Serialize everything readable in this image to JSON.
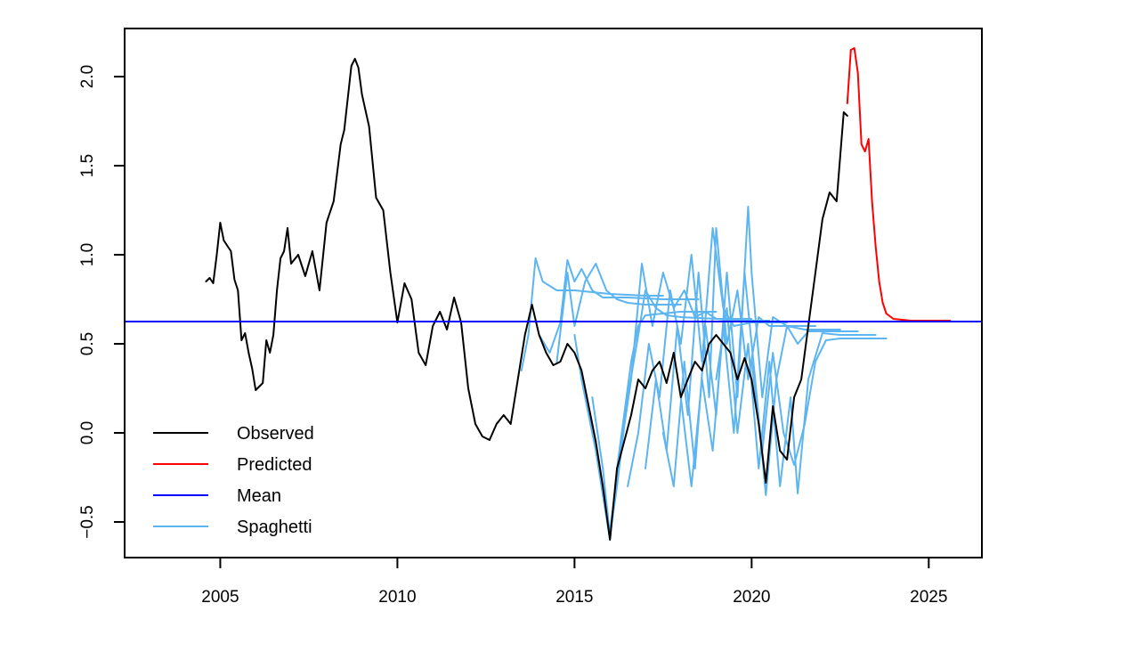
{
  "chart_data": {
    "type": "line",
    "title": "",
    "xlabel": "",
    "ylabel": "",
    "xlim": [
      2002.3,
      2026.5
    ],
    "ylim": [
      -0.7,
      2.27
    ],
    "x_ticks": [
      2005,
      2010,
      2015,
      2020,
      2025
    ],
    "x_tick_labels": [
      "2005",
      "2010",
      "2015",
      "2020",
      "2025"
    ],
    "y_ticks": [
      -0.5,
      0.0,
      0.5,
      1.0,
      1.5,
      2.0
    ],
    "y_tick_labels": [
      "−0.5",
      "0.0",
      "0.5",
      "1.0",
      "1.5",
      "2.0"
    ],
    "grid": false,
    "legend_position": "bottom-left",
    "colors": {
      "observed": "#000000",
      "predicted": "#ff0000",
      "mean": "#0000ff",
      "spaghetti": "#5cb4f0"
    },
    "legend": [
      {
        "name": "Observed",
        "color": "#000000"
      },
      {
        "name": "Predicted",
        "color": "#ff0000"
      },
      {
        "name": "Mean",
        "color": "#0000ff"
      },
      {
        "name": "Spaghetti",
        "color": "#5cb4f0"
      }
    ],
    "mean_value": 0.625,
    "series": [
      {
        "key": "observed",
        "x": [
          2004.6,
          2004.7,
          2004.8,
          2004.9,
          2005.0,
          2005.1,
          2005.2,
          2005.3,
          2005.4,
          2005.5,
          2005.6,
          2005.7,
          2005.8,
          2005.9,
          2006.0,
          2006.1,
          2006.2,
          2006.3,
          2006.4,
          2006.5,
          2006.6,
          2006.7,
          2006.8,
          2006.9,
          2007.0,
          2007.2,
          2007.4,
          2007.6,
          2007.8,
          2008.0,
          2008.2,
          2008.4,
          2008.5,
          2008.6,
          2008.7,
          2008.8,
          2008.9,
          2009.0,
          2009.2,
          2009.4,
          2009.6,
          2009.8,
          2010.0,
          2010.2,
          2010.4,
          2010.6,
          2010.8,
          2011.0,
          2011.2,
          2011.4,
          2011.6,
          2011.8,
          2012.0,
          2012.2,
          2012.4,
          2012.6,
          2012.8,
          2013.0,
          2013.2,
          2013.4,
          2013.6,
          2013.8,
          2014.0,
          2014.2,
          2014.4,
          2014.6,
          2014.8,
          2015.0,
          2015.2,
          2015.4,
          2015.6,
          2015.8,
          2016.0,
          2016.1,
          2016.2,
          2016.4,
          2016.6,
          2016.8,
          2017.0,
          2017.2,
          2017.4,
          2017.6,
          2017.8,
          2018.0,
          2018.2,
          2018.4,
          2018.6,
          2018.8,
          2019.0,
          2019.2,
          2019.4,
          2019.6,
          2019.8,
          2020.0,
          2020.2,
          2020.4,
          2020.6,
          2020.8,
          2021.0,
          2021.2,
          2021.4,
          2021.6,
          2021.8,
          2022.0,
          2022.2,
          2022.4,
          2022.6,
          2022.7
        ],
        "y": [
          0.85,
          0.87,
          0.84,
          1.0,
          1.18,
          1.08,
          1.05,
          1.02,
          0.86,
          0.8,
          0.52,
          0.56,
          0.45,
          0.36,
          0.24,
          0.26,
          0.28,
          0.52,
          0.45,
          0.55,
          0.8,
          0.98,
          1.02,
          1.15,
          0.95,
          1.0,
          0.88,
          1.02,
          0.8,
          1.18,
          1.3,
          1.62,
          1.7,
          1.88,
          2.06,
          2.1,
          2.05,
          1.9,
          1.72,
          1.32,
          1.25,
          0.9,
          0.62,
          0.84,
          0.75,
          0.45,
          0.38,
          0.6,
          0.68,
          0.58,
          0.76,
          0.62,
          0.25,
          0.05,
          -0.02,
          -0.04,
          0.05,
          0.1,
          0.05,
          0.3,
          0.55,
          0.72,
          0.55,
          0.45,
          0.38,
          0.4,
          0.5,
          0.45,
          0.35,
          0.15,
          -0.05,
          -0.3,
          -0.6,
          -0.4,
          -0.2,
          -0.05,
          0.1,
          0.3,
          0.25,
          0.35,
          0.4,
          0.28,
          0.45,
          0.2,
          0.3,
          0.4,
          0.35,
          0.5,
          0.55,
          0.5,
          0.45,
          0.3,
          0.42,
          0.3,
          0.05,
          -0.28,
          0.15,
          -0.1,
          -0.15,
          0.2,
          0.3,
          0.6,
          0.9,
          1.2,
          1.35,
          1.3,
          1.8,
          1.78
        ],
        "color": "#000000",
        "width": 2
      },
      {
        "key": "predicted",
        "x": [
          2022.7,
          2022.8,
          2022.9,
          2023.0,
          2023.1,
          2023.2,
          2023.3,
          2023.4,
          2023.5,
          2023.6,
          2023.7,
          2023.8,
          2024.0,
          2024.5,
          2025.0,
          2025.6
        ],
        "y": [
          1.85,
          2.15,
          2.16,
          2.02,
          1.62,
          1.58,
          1.65,
          1.3,
          1.05,
          0.85,
          0.73,
          0.67,
          0.64,
          0.63,
          0.63,
          0.63
        ],
        "color": "#ff0000",
        "width": 2
      },
      {
        "key": "spaghetti",
        "x": [
          2013.5,
          2013.7,
          2013.9,
          2014.1,
          2014.5,
          2015.0,
          2015.5,
          2016.0,
          2017.0,
          2017.5
        ],
        "y": [
          0.35,
          0.55,
          0.98,
          0.85,
          0.8,
          0.8,
          0.79,
          0.78,
          0.77,
          0.77
        ],
        "color": "#5cb4f0",
        "width": 2
      },
      {
        "key": "spaghetti",
        "x": [
          2014.0,
          2014.3,
          2014.6,
          2014.8,
          2015.0,
          2015.2,
          2015.5,
          2015.8,
          2016.5,
          2017.5,
          2018.5
        ],
        "y": [
          0.55,
          0.45,
          0.62,
          0.97,
          0.85,
          0.92,
          0.8,
          0.76,
          0.76,
          0.75,
          0.75
        ],
        "color": "#5cb4f0",
        "width": 2
      },
      {
        "key": "spaghetti",
        "x": [
          2014.5,
          2014.8,
          2015.0,
          2015.3,
          2015.6,
          2015.9,
          2016.2,
          2016.5,
          2017.0,
          2018.0
        ],
        "y": [
          0.4,
          0.9,
          0.6,
          0.85,
          0.95,
          0.8,
          0.75,
          0.73,
          0.72,
          0.72
        ],
        "color": "#5cb4f0",
        "width": 2
      },
      {
        "key": "spaghetti",
        "x": [
          2015.0,
          2015.2,
          2015.4,
          2015.6,
          2015.8,
          2016.0,
          2016.2,
          2016.4,
          2016.6,
          2016.8,
          2017.0,
          2018.0,
          2019.0
        ],
        "y": [
          0.55,
          0.3,
          0.1,
          -0.1,
          -0.35,
          -0.6,
          -0.2,
          0.1,
          0.4,
          0.6,
          0.66,
          0.68,
          0.68
        ],
        "color": "#5cb4f0",
        "width": 2
      },
      {
        "key": "spaghetti",
        "x": [
          2015.5,
          2015.8,
          2016.0,
          2016.2,
          2016.5,
          2016.8,
          2017.0,
          2017.3,
          2017.6,
          2018.0,
          2019.0,
          2020.0
        ],
        "y": [
          0.2,
          -0.2,
          -0.58,
          -0.3,
          0.2,
          0.55,
          0.8,
          0.7,
          0.66,
          0.65,
          0.64,
          0.64
        ],
        "color": "#5cb4f0",
        "width": 2
      },
      {
        "key": "spaghetti",
        "x": [
          2016.0,
          2016.3,
          2016.6,
          2016.9,
          2017.2,
          2017.5,
          2017.8,
          2018.1,
          2018.4,
          2018.7,
          2019.0,
          2019.5,
          2020.5
        ],
        "y": [
          -0.55,
          -0.1,
          0.3,
          0.95,
          0.6,
          0.9,
          0.7,
          0.8,
          0.65,
          0.68,
          0.64,
          0.63,
          0.63
        ],
        "color": "#5cb4f0",
        "width": 2
      },
      {
        "key": "spaghetti",
        "x": [
          2016.5,
          2016.8,
          2017.1,
          2017.4,
          2017.7,
          2018.0,
          2018.3,
          2018.6,
          2018.9,
          2019.2,
          2019.5,
          2020.0,
          2021.0
        ],
        "y": [
          -0.3,
          0.0,
          0.5,
          0.2,
          0.8,
          0.5,
          1.0,
          0.4,
          1.15,
          0.7,
          0.6,
          0.62,
          0.62
        ],
        "color": "#5cb4f0",
        "width": 2
      },
      {
        "key": "spaghetti",
        "x": [
          2017.0,
          2017.3,
          2017.6,
          2017.9,
          2018.2,
          2018.5,
          2018.8,
          2019.0,
          2019.3,
          2019.6,
          2019.9,
          2020.2,
          2020.5,
          2021.0,
          2021.8
        ],
        "y": [
          -0.2,
          0.3,
          -0.1,
          0.6,
          0.1,
          0.9,
          0.2,
          1.15,
          0.5,
          0.8,
          0.3,
          0.65,
          0.6,
          0.6,
          0.6
        ],
        "color": "#5cb4f0",
        "width": 2
      },
      {
        "key": "spaghetti",
        "x": [
          2017.5,
          2017.8,
          2018.1,
          2018.4,
          2018.7,
          2019.0,
          2019.3,
          2019.6,
          2019.9,
          2020.0,
          2020.3,
          2020.6,
          2021.0,
          2021.5,
          2022.5
        ],
        "y": [
          0.0,
          -0.3,
          0.4,
          -0.2,
          0.6,
          0.1,
          0.9,
          0.2,
          1.27,
          0.9,
          0.2,
          0.65,
          0.6,
          0.58,
          0.58
        ],
        "color": "#5cb4f0",
        "width": 2
      },
      {
        "key": "spaghetti",
        "x": [
          2018.0,
          2018.3,
          2018.6,
          2018.9,
          2019.2,
          2019.5,
          2019.8,
          2020.1,
          2020.4,
          2020.7,
          2021.0,
          2021.3,
          2021.6,
          2022.0,
          2023.0
        ],
        "y": [
          0.2,
          -0.3,
          0.3,
          -0.1,
          0.6,
          0.0,
          0.9,
          0.3,
          -0.35,
          0.3,
          0.6,
          0.5,
          0.57,
          0.57,
          0.57
        ],
        "color": "#5cb4f0",
        "width": 2
      },
      {
        "key": "spaghetti",
        "x": [
          2019.0,
          2019.3,
          2019.6,
          2019.9,
          2020.2,
          2020.5,
          2020.8,
          2021.1,
          2021.3,
          2021.6,
          2022.0,
          2022.5,
          2023.5
        ],
        "y": [
          0.3,
          0.7,
          0.0,
          0.5,
          -0.2,
          0.4,
          -0.3,
          0.2,
          -0.34,
          0.3,
          0.56,
          0.55,
          0.55
        ],
        "color": "#5cb4f0",
        "width": 2
      },
      {
        "key": "spaghetti",
        "x": [
          2020.0,
          2020.3,
          2020.6,
          2020.9,
          2021.2,
          2021.5,
          2021.8,
          2022.1,
          2022.5,
          2023.0,
          2023.8
        ],
        "y": [
          0.4,
          -0.1,
          0.45,
          0.0,
          -0.18,
          0.05,
          0.4,
          0.52,
          0.53,
          0.53,
          0.53
        ],
        "color": "#5cb4f0",
        "width": 2
      }
    ]
  }
}
